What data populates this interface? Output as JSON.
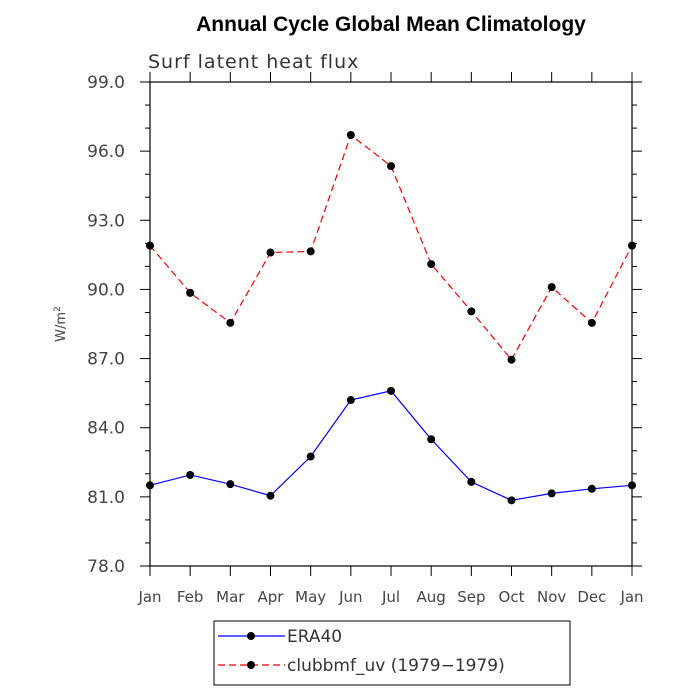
{
  "chart_data": {
    "type": "line",
    "title": "Annual Cycle Global Mean Climatology",
    "subtitle": "Surf latent heat flux",
    "ylabel": "W/m",
    "ylabel_sup": "2",
    "xlabel": "",
    "ylim": [
      78.0,
      99.0
    ],
    "yticks": [
      "78.0",
      "81.0",
      "84.0",
      "87.0",
      "90.0",
      "93.0",
      "96.0",
      "99.0"
    ],
    "ytick_values": [
      78,
      81,
      84,
      87,
      90,
      93,
      96,
      99
    ],
    "categories": [
      "Jan",
      "Feb",
      "Mar",
      "Apr",
      "May",
      "Jun",
      "Jul",
      "Aug",
      "Sep",
      "Oct",
      "Nov",
      "Dec",
      "Jan"
    ],
    "series": [
      {
        "name": "ERA40",
        "color": "#0000ff",
        "style": "solid",
        "values": [
          81.5,
          81.95,
          81.55,
          81.05,
          82.75,
          85.2,
          85.6,
          83.5,
          81.65,
          80.85,
          81.15,
          81.35,
          81.5
        ]
      },
      {
        "name": "clubbmf_uv (1979−1979)",
        "color": "#ff0000",
        "style": "dashed",
        "values": [
          91.9,
          89.85,
          88.55,
          91.6,
          91.65,
          96.7,
          95.35,
          91.1,
          89.05,
          86.95,
          90.1,
          88.55,
          91.9
        ]
      }
    ],
    "legend": {
      "placement": "bottom-center"
    }
  }
}
